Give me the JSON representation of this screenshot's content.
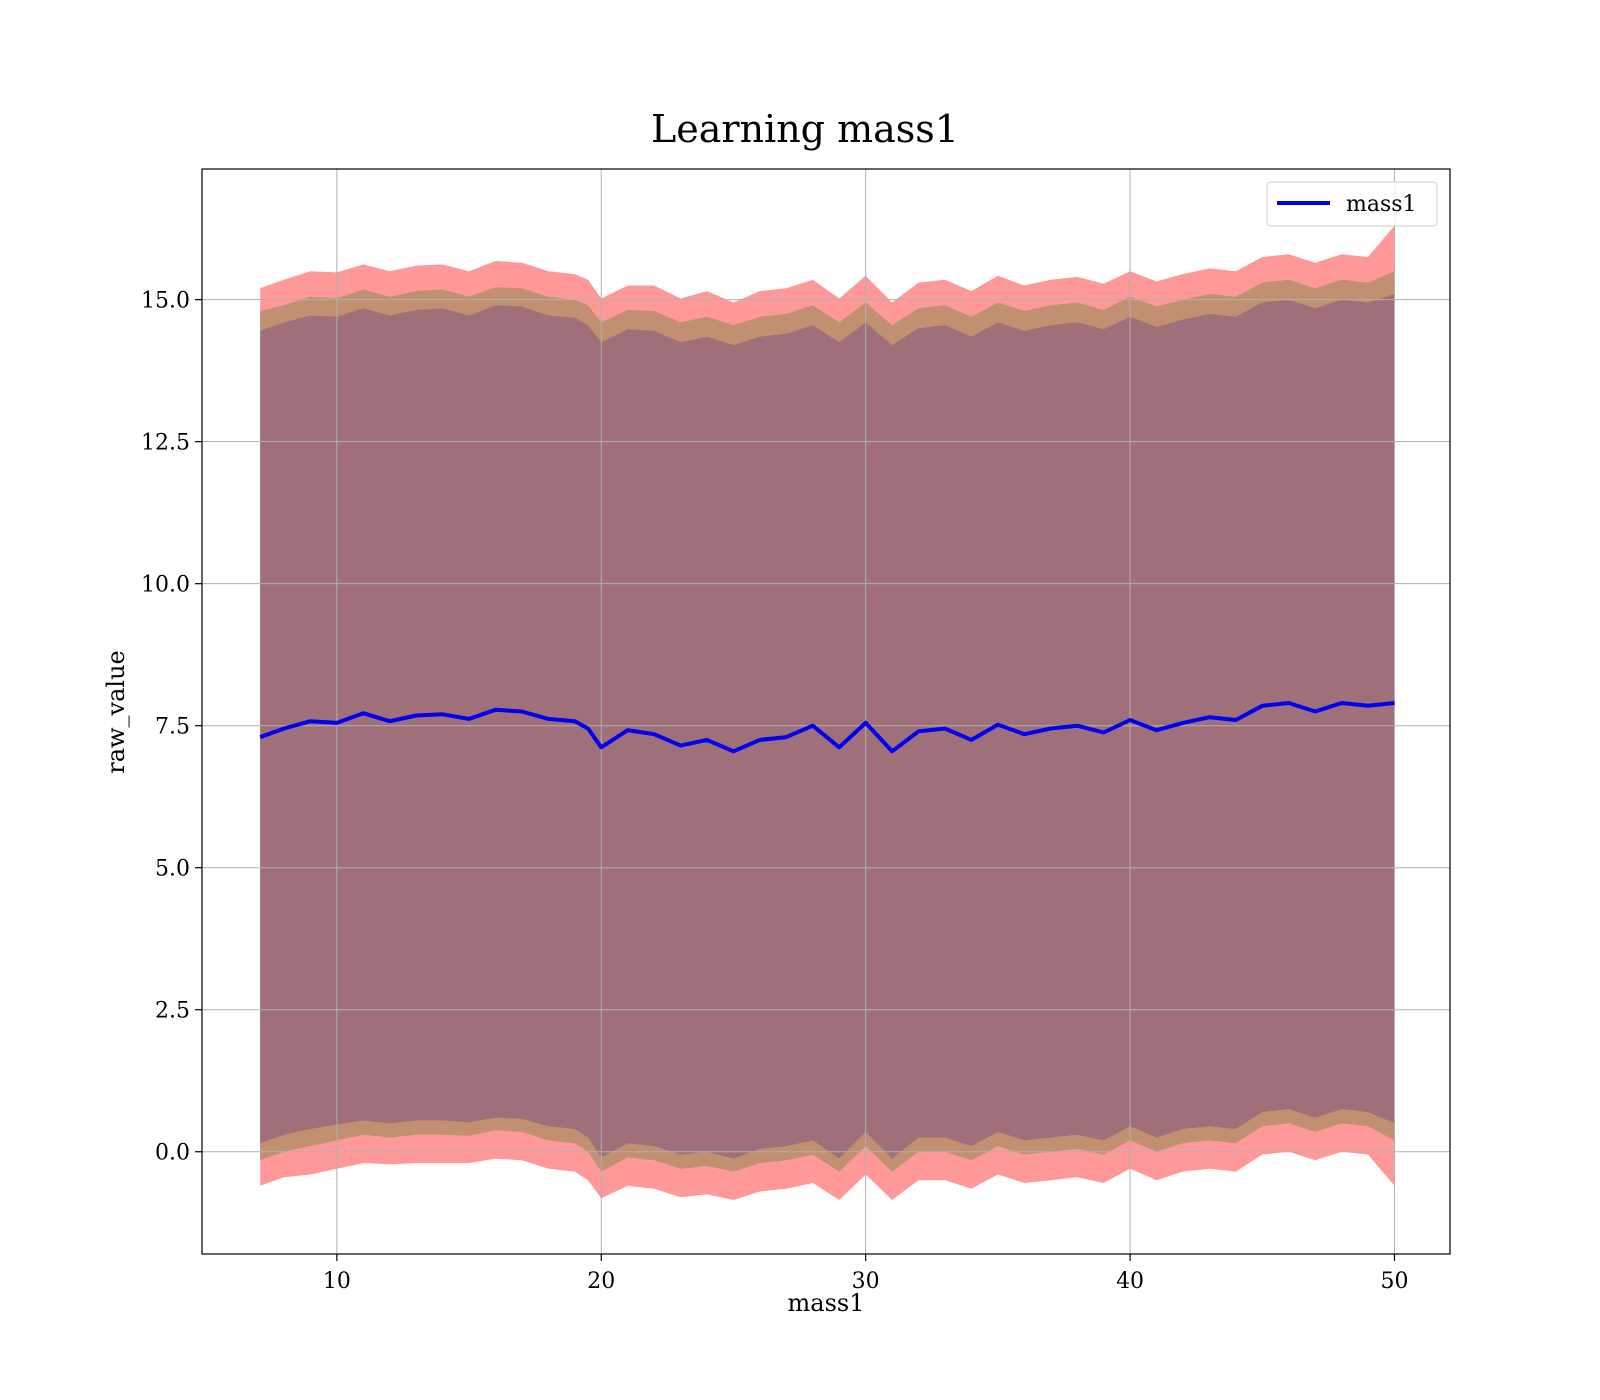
{
  "chart_data": {
    "type": "line",
    "title": "Learning mass1",
    "xlabel": "mass1",
    "ylabel": "raw_value",
    "xlim": [
      4.9,
      52.1
    ],
    "ylim": [
      -1.8,
      17.3
    ],
    "xticks": [
      10,
      20,
      30,
      40,
      50
    ],
    "yticks": [
      0.0,
      2.5,
      5.0,
      7.5,
      10.0,
      12.5,
      15.0
    ],
    "xtick_labels": [
      "10",
      "20",
      "30",
      "40",
      "50"
    ],
    "ytick_labels": [
      "0.0",
      "2.5",
      "5.0",
      "7.5",
      "10.0",
      "12.5",
      "15.0"
    ],
    "grid": true,
    "legend": {
      "position": "top-right",
      "entries": [
        "mass1"
      ]
    },
    "colors": {
      "line": "#0000ee",
      "band_outer": "#ff9999",
      "band_mid": "#c09070",
      "band_inner": "#a0707a",
      "grid": "#b0b0b0"
    },
    "x": [
      7.1,
      8,
      9,
      10,
      11,
      12,
      13,
      14,
      15,
      16,
      17,
      18,
      19,
      19.5,
      20,
      21,
      22,
      23,
      24,
      25,
      26,
      27,
      28,
      29,
      30,
      31,
      32,
      33,
      34,
      35,
      36,
      37,
      38,
      39,
      40,
      41,
      42,
      43,
      44,
      45,
      46,
      47,
      48,
      49,
      50
    ],
    "series": [
      {
        "name": "mass1",
        "values": [
          7.3,
          7.45,
          7.58,
          7.55,
          7.72,
          7.58,
          7.68,
          7.7,
          7.62,
          7.78,
          7.75,
          7.62,
          7.58,
          7.45,
          7.12,
          7.42,
          7.35,
          7.15,
          7.25,
          7.05,
          7.25,
          7.3,
          7.5,
          7.12,
          7.55,
          7.05,
          7.4,
          7.45,
          7.25,
          7.52,
          7.35,
          7.45,
          7.5,
          7.38,
          7.6,
          7.42,
          7.55,
          7.65,
          7.6,
          7.85,
          7.9,
          7.75,
          7.9,
          7.85,
          7.9
        ]
      }
    ],
    "bands": [
      {
        "lower": [
          -0.6,
          -0.45,
          -0.4,
          -0.3,
          -0.2,
          -0.22,
          -0.2,
          -0.2,
          -0.2,
          -0.12,
          -0.15,
          -0.3,
          -0.35,
          -0.5,
          -0.82,
          -0.6,
          -0.65,
          -0.8,
          -0.75,
          -0.85,
          -0.7,
          -0.65,
          -0.55,
          -0.85,
          -0.4,
          -0.85,
          -0.5,
          -0.5,
          -0.65,
          -0.4,
          -0.55,
          -0.5,
          -0.45,
          -0.55,
          -0.3,
          -0.5,
          -0.35,
          -0.3,
          -0.35,
          -0.05,
          0.0,
          -0.15,
          0.0,
          -0.05,
          -0.6
        ],
        "upper": [
          15.2,
          15.35,
          15.5,
          15.48,
          15.62,
          15.5,
          15.6,
          15.62,
          15.5,
          15.68,
          15.65,
          15.5,
          15.45,
          15.35,
          15.02,
          15.25,
          15.25,
          15.02,
          15.15,
          14.95,
          15.15,
          15.2,
          15.35,
          15.02,
          15.42,
          14.95,
          15.3,
          15.35,
          15.15,
          15.42,
          15.25,
          15.35,
          15.4,
          15.28,
          15.5,
          15.32,
          15.45,
          15.55,
          15.5,
          15.75,
          15.8,
          15.65,
          15.8,
          15.75,
          16.3
        ]
      },
      {
        "lower": [
          -0.15,
          0.0,
          0.1,
          0.2,
          0.3,
          0.25,
          0.3,
          0.3,
          0.28,
          0.38,
          0.35,
          0.2,
          0.15,
          0.0,
          -0.35,
          -0.1,
          -0.15,
          -0.3,
          -0.25,
          -0.35,
          -0.2,
          -0.15,
          -0.05,
          -0.35,
          0.1,
          -0.35,
          0.0,
          0.0,
          -0.15,
          0.1,
          -0.05,
          0.0,
          0.05,
          -0.05,
          0.2,
          0.0,
          0.15,
          0.2,
          0.15,
          0.45,
          0.5,
          0.35,
          0.5,
          0.45,
          0.2
        ],
        "upper": [
          14.8,
          14.9,
          15.05,
          15.02,
          15.18,
          15.05,
          15.15,
          15.18,
          15.05,
          15.22,
          15.2,
          15.05,
          15.0,
          14.9,
          14.6,
          14.82,
          14.8,
          14.6,
          14.7,
          14.55,
          14.7,
          14.75,
          14.9,
          14.6,
          14.95,
          14.55,
          14.85,
          14.9,
          14.7,
          14.95,
          14.8,
          14.9,
          14.95,
          14.82,
          15.05,
          14.88,
          15.0,
          15.1,
          15.05,
          15.3,
          15.35,
          15.2,
          15.35,
          15.3,
          15.5
        ]
      },
      {
        "lower": [
          0.15,
          0.3,
          0.4,
          0.48,
          0.55,
          0.5,
          0.55,
          0.55,
          0.52,
          0.6,
          0.58,
          0.45,
          0.4,
          0.25,
          -0.1,
          0.15,
          0.1,
          -0.05,
          0.0,
          -0.12,
          0.05,
          0.1,
          0.2,
          -0.12,
          0.35,
          -0.12,
          0.25,
          0.25,
          0.1,
          0.35,
          0.2,
          0.25,
          0.3,
          0.2,
          0.45,
          0.25,
          0.4,
          0.45,
          0.4,
          0.7,
          0.75,
          0.6,
          0.75,
          0.7,
          0.5
        ],
        "upper": [
          14.45,
          14.6,
          14.72,
          14.7,
          14.85,
          14.72,
          14.82,
          14.85,
          14.72,
          14.9,
          14.88,
          14.72,
          14.68,
          14.55,
          14.25,
          14.48,
          14.45,
          14.25,
          14.35,
          14.2,
          14.35,
          14.4,
          14.55,
          14.25,
          14.6,
          14.2,
          14.5,
          14.55,
          14.35,
          14.6,
          14.45,
          14.55,
          14.6,
          14.48,
          14.7,
          14.52,
          14.65,
          14.75,
          14.7,
          14.95,
          15.0,
          14.85,
          15.0,
          14.95,
          15.1
        ]
      }
    ]
  }
}
